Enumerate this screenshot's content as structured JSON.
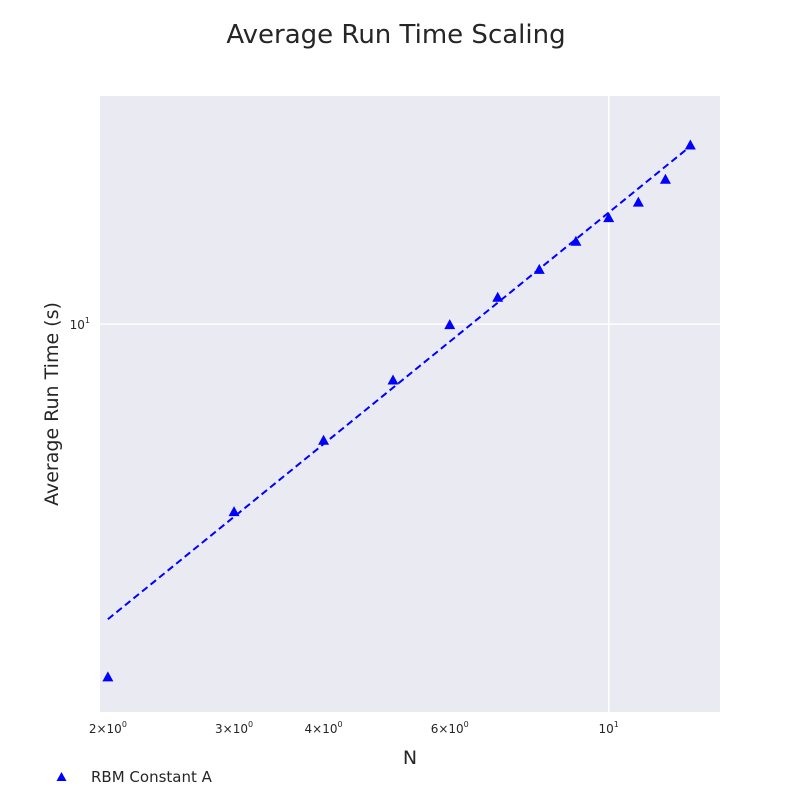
{
  "chart_data": {
    "type": "scatter",
    "title": "Average Run Time Scaling",
    "xlabel": "N",
    "ylabel": "Average Run Time (s)",
    "xscale": "log",
    "yscale": "log",
    "xlim": [
      1.95,
      14.3
    ],
    "ylim": [
      2.95,
      20.5
    ],
    "x_ticks": [
      {
        "value": 2,
        "mant": "2",
        "exp": "0"
      },
      {
        "value": 3,
        "mant": "3",
        "exp": "0"
      },
      {
        "value": 4,
        "mant": "4",
        "exp": "0"
      },
      {
        "value": 6,
        "mant": "6",
        "exp": "0"
      },
      {
        "value": 10,
        "mant": "10",
        "exp": "1"
      }
    ],
    "y_ticks": [
      {
        "value": 10,
        "mant": "10",
        "exp": "1"
      }
    ],
    "grid": true,
    "legend_position": "bottom-left",
    "series": [
      {
        "name": "RBM Constant A",
        "type": "scatter",
        "marker": "triangle",
        "color": "#0000ff",
        "x": [
          2,
          3,
          4,
          5,
          6,
          7,
          8,
          9,
          10,
          11,
          12,
          13
        ],
        "y": [
          3.3,
          5.55,
          6.95,
          8.4,
          10.0,
          10.9,
          11.9,
          13.0,
          14.0,
          14.7,
          15.8,
          17.6
        ]
      },
      {
        "name": "",
        "type": "line",
        "style": "dashed",
        "color": "#0000ff",
        "x": [
          2,
          13
        ],
        "y": [
          3.95,
          17.5
        ]
      }
    ]
  }
}
